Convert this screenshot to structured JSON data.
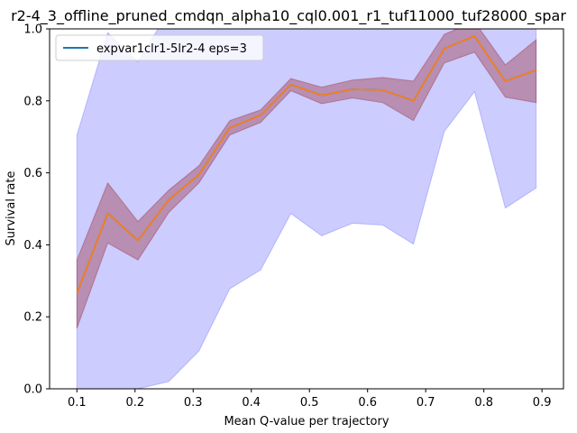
{
  "chart_data": {
    "type": "line",
    "title": "r2-4_3_offline_pruned_cmdqn_alpha10_cql0.001_r1_tuf11000_tuf28000_spar",
    "xlabel": "Mean Q-value per trajectory",
    "ylabel": "Survival rate",
    "xlim": [
      0.053,
      0.937
    ],
    "ylim": [
      0.0,
      1.0
    ],
    "xticks": [
      "0.1",
      "0.2",
      "0.3",
      "0.4",
      "0.5",
      "0.6",
      "0.7",
      "0.8",
      "0.9"
    ],
    "xtick_values": [
      0.1,
      0.2,
      0.3,
      0.4,
      0.5,
      0.6,
      0.7,
      0.8,
      0.9
    ],
    "yticks": [
      "0.0",
      "0.2",
      "0.4",
      "0.6",
      "0.8",
      "1.0"
    ],
    "ytick_values": [
      0.0,
      0.2,
      0.4,
      0.6,
      0.8,
      1.0
    ],
    "grid": false,
    "legend_position": "top-left",
    "x": [
      0.1,
      0.153,
      0.205,
      0.258,
      0.31,
      0.363,
      0.416,
      0.468,
      0.521,
      0.574,
      0.626,
      0.679,
      0.732,
      0.784,
      0.837,
      0.89
    ],
    "series": [
      {
        "name": "expvar1clr1-5lr2-4 eps=3",
        "color": "#1f77b4",
        "values": [
          0.265,
          0.488,
          0.412,
          0.525,
          0.595,
          0.725,
          0.76,
          0.845,
          0.815,
          0.832,
          0.83,
          0.8,
          0.945,
          0.98,
          0.855,
          0.885
        ]
      },
      {
        "name": "",
        "color": "#ff7f0e",
        "values": [
          0.265,
          0.488,
          0.412,
          0.525,
          0.595,
          0.725,
          0.76,
          0.845,
          0.815,
          0.832,
          0.83,
          0.8,
          0.945,
          0.98,
          0.855,
          0.885
        ]
      }
    ],
    "bands": [
      {
        "color": "#0000ff",
        "opacity": 0.2,
        "lower": [
          0.0,
          0.0,
          0.0,
          0.02,
          0.105,
          0.278,
          0.33,
          0.487,
          0.425,
          0.46,
          0.455,
          0.402,
          0.715,
          0.825,
          0.502,
          0.558
        ],
        "upper": [
          0.705,
          0.99,
          0.908,
          1.05,
          1.05,
          1.05,
          1.05,
          1.05,
          1.05,
          1.05,
          1.05,
          1.05,
          1.05,
          1.05,
          1.05,
          1.05
        ]
      },
      {
        "color": "#8b0000",
        "opacity": 0.3,
        "lower": [
          0.168,
          0.405,
          0.358,
          0.49,
          0.572,
          0.705,
          0.74,
          0.828,
          0.792,
          0.808,
          0.795,
          0.745,
          0.905,
          0.935,
          0.81,
          0.795
        ],
        "upper": [
          0.358,
          0.572,
          0.465,
          0.552,
          0.62,
          0.745,
          0.775,
          0.862,
          0.838,
          0.858,
          0.865,
          0.855,
          0.985,
          1.02,
          0.9,
          0.97
        ]
      }
    ]
  }
}
